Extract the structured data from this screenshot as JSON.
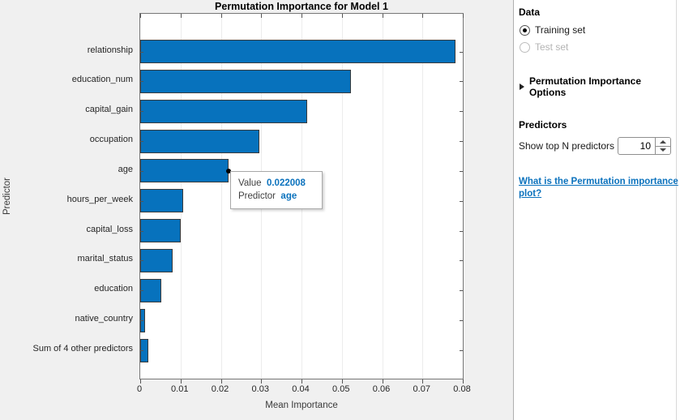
{
  "chart_data": {
    "type": "bar",
    "orientation": "horizontal",
    "title": "Permutation Importance for Model 1",
    "xlabel": "Mean Importance",
    "ylabel": "Predictor",
    "categories": [
      "relationship",
      "education_num",
      "capital_gain",
      "occupation",
      "age",
      "hours_per_week",
      "capital_loss",
      "marital_status",
      "education",
      "native_country",
      "Sum of 4 other predictors"
    ],
    "values": [
      0.0782,
      0.0522,
      0.0415,
      0.0295,
      0.022008,
      0.0107,
      0.0101,
      0.008,
      0.0052,
      0.0013,
      0.0021
    ],
    "xlim": [
      0,
      0.08
    ],
    "xticks": [
      0,
      0.01,
      0.02,
      0.03,
      0.04,
      0.05,
      0.06,
      0.07,
      0.08
    ],
    "xtick_labels": [
      "0",
      "0.01",
      "0.02",
      "0.03",
      "0.04",
      "0.05",
      "0.06",
      "0.07",
      "0.08"
    ],
    "grid": true,
    "legend": false,
    "bar_color": "#0772bd",
    "bar_edge_color": "#3c3c3c"
  },
  "tooltip": {
    "value_label": "Value",
    "value": "0.022008",
    "predictor_label": "Predictor",
    "predictor": "age",
    "accent_color": "#0b72bd"
  },
  "panel": {
    "data_section": {
      "heading": "Data",
      "options": [
        {
          "label": "Training set",
          "selected": true,
          "enabled": true
        },
        {
          "label": "Test set",
          "selected": false,
          "enabled": false
        }
      ]
    },
    "options_section": {
      "label": "Permutation Importance Options",
      "collapsed": true
    },
    "predictors_section": {
      "heading": "Predictors",
      "show_top_label": "Show top N predictors",
      "top_n": "10"
    },
    "help_link": {
      "text": "What is the Permutation importance plot?"
    }
  }
}
